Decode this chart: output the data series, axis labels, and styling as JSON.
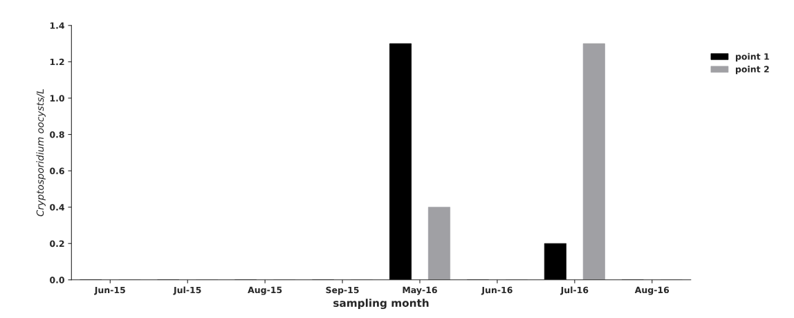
{
  "chart_data": {
    "type": "bar",
    "xlabel": "sampling month",
    "ylabel": "Cryptosporidium oocysts/L",
    "categories": [
      "Jun-15",
      "Jul-15",
      "Aug-15",
      "Sep-15",
      "May-16",
      "Jun-16",
      "Jul-16",
      "Aug-16"
    ],
    "series": [
      {
        "name": "point 1",
        "color": "#000000",
        "values": [
          0,
          0,
          0,
          0,
          1.3,
          0,
          0.2,
          0
        ]
      },
      {
        "name": "point 2",
        "color": "#a0a0a4",
        "values": [
          0,
          0,
          0,
          0,
          0.4,
          0,
          1.3,
          0
        ]
      }
    ],
    "ylim": [
      0,
      1.4
    ],
    "yticks": [
      {
        "value": 0,
        "label": "0.0"
      },
      {
        "value": 0.2,
        "label": "0.2"
      },
      {
        "value": 0.4,
        "label": "0.4"
      },
      {
        "value": 0.6,
        "label": "0.6"
      },
      {
        "value": 0.8,
        "label": "0.8"
      },
      {
        "value": 1.0,
        "label": "1.0"
      },
      {
        "value": 1.2,
        "label": "1.2"
      },
      {
        "value": 1.4,
        "label": "1.4"
      }
    ],
    "grid": false,
    "legend": "right"
  }
}
